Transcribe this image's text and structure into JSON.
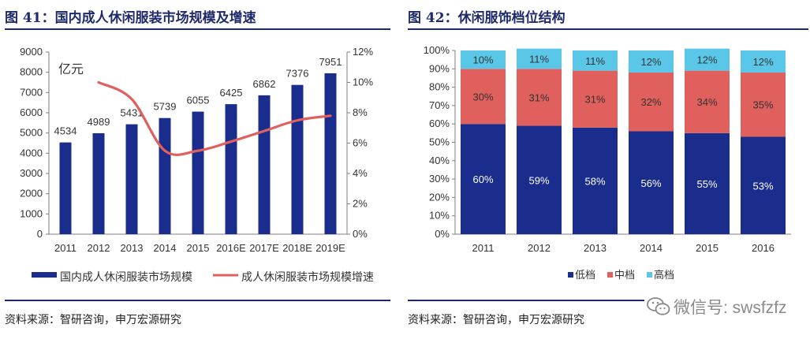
{
  "left": {
    "title": "图 41：国内成人休闲服装市场规模及增速",
    "source": "资料来源：智研咨询，申万宏源研究",
    "unit_label": "亿元",
    "chart_data": {
      "type": "bar",
      "categories": [
        "2011",
        "2012",
        "2013",
        "2014",
        "2015",
        "2016E",
        "2017E",
        "2018E",
        "2019E"
      ],
      "series": [
        {
          "name": "国内成人休闲服装市场规模",
          "type": "bar",
          "axis": "left",
          "color": "#1b2d8c",
          "values": [
            4534,
            4989,
            5431,
            5739,
            6055,
            6425,
            6862,
            7376,
            7951
          ]
        },
        {
          "name": "成人休闲服装市场规模增速",
          "type": "line",
          "axis": "right",
          "color": "#e0605d",
          "values": [
            null,
            10.0,
            8.9,
            5.5,
            5.5,
            6.1,
            6.8,
            7.5,
            7.8
          ]
        }
      ],
      "yleft_ticks": [
        "0",
        "1000",
        "2000",
        "3000",
        "4000",
        "5000",
        "6000",
        "7000",
        "8000",
        "9000"
      ],
      "yright_ticks": [
        "0%",
        "2%",
        "4%",
        "6%",
        "8%",
        "10%",
        "12%"
      ],
      "yleft_lim": [
        0,
        9000
      ],
      "yright_lim": [
        0,
        12
      ],
      "data_labels": [
        "4534",
        "4989",
        "5431",
        "5739",
        "6055",
        "6425",
        "6862",
        "7376",
        "7951"
      ],
      "grid": false,
      "legend": "bottom"
    }
  },
  "right": {
    "title": "图 42：休闲服饰档位结构",
    "source": "资料来源：智研咨询，申万宏源研究",
    "chart_data": {
      "type": "bar",
      "stacked": true,
      "categories": [
        "2011",
        "2012",
        "2013",
        "2014",
        "2015",
        "2016"
      ],
      "series": [
        {
          "name": "低档",
          "color": "#1b2d8c",
          "values": [
            60,
            59,
            58,
            56,
            55,
            53
          ],
          "labels": [
            "60%",
            "59%",
            "58%",
            "56%",
            "55%",
            "53%"
          ]
        },
        {
          "name": "中档",
          "color": "#e0605d",
          "values": [
            30,
            31,
            31,
            32,
            34,
            35
          ],
          "labels": [
            "30%",
            "31%",
            "31%",
            "32%",
            "34%",
            "35%"
          ]
        },
        {
          "name": "高档",
          "color": "#5bc7e8",
          "values": [
            10,
            11,
            11,
            12,
            12,
            12
          ],
          "labels": [
            "10%",
            "11%",
            "11%",
            "12%",
            "12%",
            "12%"
          ]
        }
      ],
      "y_ticks": [
        "0%",
        "10%",
        "20%",
        "30%",
        "40%",
        "50%",
        "60%",
        "70%",
        "80%",
        "90%",
        "100%"
      ],
      "ylim": [
        0,
        100
      ],
      "grid": false,
      "legend": "bottom"
    }
  },
  "watermark": {
    "icon": "wechat-icon",
    "text": "微信号: swsfzfz"
  }
}
